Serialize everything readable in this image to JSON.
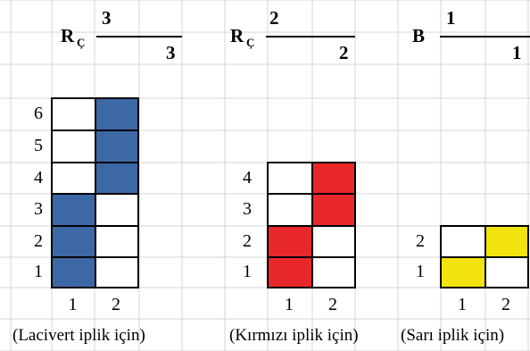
{
  "grid": {
    "line_color": "#d4d4d4"
  },
  "colors": {
    "navy": "#3d68a6",
    "red": "#e8272a",
    "yellow": "#f2e20e",
    "white": "#ffffff",
    "border": "#000000"
  },
  "headers": [
    {
      "letter": "R",
      "sub": "Ç",
      "numerator": "3",
      "denominator": "3"
    },
    {
      "letter": "R",
      "sub": "Ç",
      "numerator": "2",
      "denominator": "2"
    },
    {
      "letter": "B",
      "sub": "",
      "numerator": "1",
      "denominator": "1"
    }
  ],
  "patterns": [
    {
      "caption": "(Lacivert iplik için)",
      "row_labels": [
        "6",
        "5",
        "4",
        "3",
        "2",
        "1"
      ],
      "col_labels": [
        "1",
        "2"
      ],
      "fill_color": "navy",
      "cells": [
        [
          0,
          1
        ],
        [
          0,
          1
        ],
        [
          0,
          1
        ],
        [
          1,
          0
        ],
        [
          1,
          0
        ],
        [
          1,
          0
        ]
      ]
    },
    {
      "caption": "(Kırmızı iplik için)",
      "row_labels": [
        "4",
        "3",
        "2",
        "1"
      ],
      "col_labels": [
        "1",
        "2"
      ],
      "fill_color": "red",
      "cells": [
        [
          0,
          1
        ],
        [
          0,
          1
        ],
        [
          1,
          0
        ],
        [
          1,
          0
        ]
      ]
    },
    {
      "caption": "(Sarı iplik için)",
      "row_labels": [
        "2",
        "1"
      ],
      "col_labels": [
        "1",
        "2"
      ],
      "fill_color": "yellow",
      "cells": [
        [
          0,
          1
        ],
        [
          1,
          0
        ]
      ]
    }
  ]
}
